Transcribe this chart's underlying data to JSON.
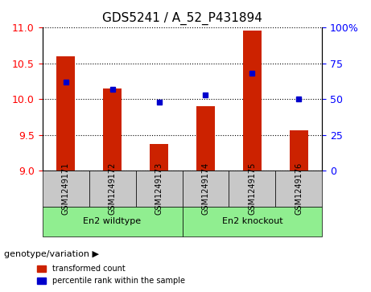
{
  "title": "GDS5241 / A_52_P431894",
  "samples": [
    "GSM1249171",
    "GSM1249172",
    "GSM1249173",
    "GSM1249174",
    "GSM1249175",
    "GSM1249176"
  ],
  "red_values": [
    10.6,
    10.15,
    9.38,
    9.9,
    10.96,
    9.57
  ],
  "blue_values": [
    10.24,
    10.14,
    9.97,
    10.06,
    10.35,
    10.0
  ],
  "blue_percentiles": [
    62,
    57,
    48,
    53,
    68,
    50
  ],
  "ylim_left": [
    9,
    11
  ],
  "ylim_right": [
    0,
    100
  ],
  "yticks_left": [
    9,
    9.5,
    10,
    10.5,
    11
  ],
  "yticks_right": [
    0,
    25,
    50,
    75,
    100
  ],
  "groups": [
    {
      "label": "En2 wildtype",
      "indices": [
        0,
        1,
        2
      ],
      "color": "#90EE90"
    },
    {
      "label": "En2 knockout",
      "indices": [
        3,
        4,
        5
      ],
      "color": "#90EE90"
    }
  ],
  "group_label": "genotype/variation",
  "legend_red": "transformed count",
  "legend_blue": "percentile rank within the sample",
  "bar_color": "#CC2200",
  "dot_color": "#0000CC",
  "grid_color": "#000000",
  "sample_bg_color": "#C8C8C8",
  "group_bg_color": "#90EE90"
}
